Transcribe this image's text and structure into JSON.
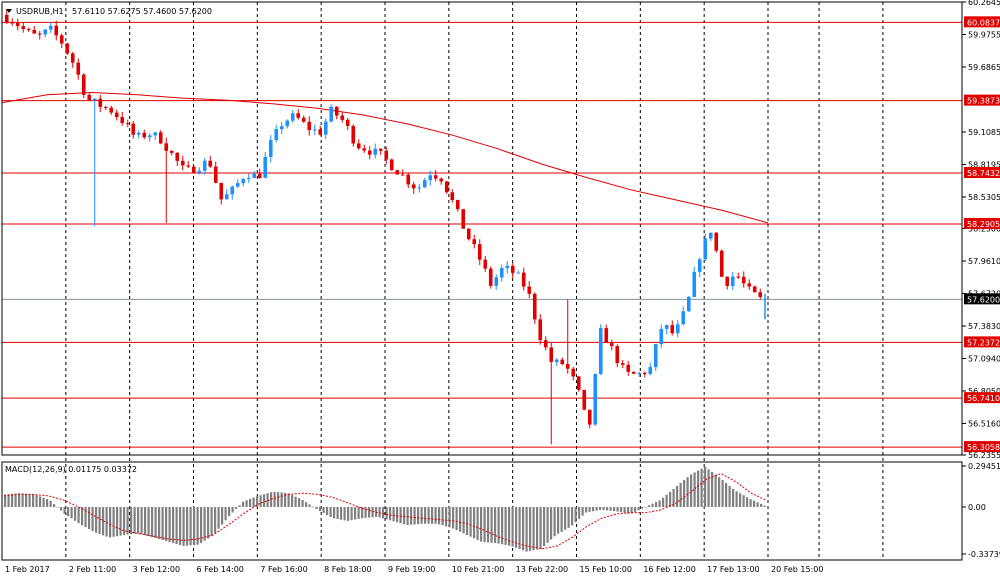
{
  "header": {
    "symbol_label": "USDRUB,H1",
    "ohlc_label": "57.6110 57.6275 57.4600 57.6200"
  },
  "macd": {
    "label": "MACD(12,26,9) 0.01175 0.03372",
    "ticks": [
      {
        "value": 0.29451,
        "label": "0.29451"
      },
      {
        "value": 0.0,
        "label": "0.00"
      },
      {
        "value": -0.33739,
        "label": "-0.33739"
      }
    ],
    "signal_values": [
      0.08,
      0.09,
      0.09,
      0.08,
      0.05,
      0.0,
      -0.06,
      -0.12,
      -0.17,
      -0.19,
      -0.21,
      -0.23,
      -0.24,
      -0.23,
      -0.2,
      -0.13,
      -0.05,
      0.02,
      0.06,
      0.09,
      0.1,
      0.09,
      0.07,
      0.03,
      -0.01,
      -0.04,
      -0.06,
      -0.07,
      -0.08,
      -0.09,
      -0.1,
      -0.12,
      -0.16,
      -0.21,
      -0.25,
      -0.28,
      -0.3,
      -0.28,
      -0.22,
      -0.14,
      -0.08,
      -0.05,
      -0.04,
      -0.04,
      -0.02,
      0.03,
      0.11,
      0.2,
      0.24,
      0.18,
      0.1,
      0.05
    ]
  },
  "chart_data": {
    "type": "candlestick",
    "symbol": "USDRUB",
    "timeframe": "H1",
    "price_ticks": [
      60.2645,
      59.9755,
      59.6865,
      59.1085,
      58.8195,
      58.5305,
      58.25,
      57.961,
      57.672,
      57.383,
      57.094,
      56.805,
      56.516,
      56.2355
    ],
    "ylim": [
      56.2355,
      60.2645
    ],
    "time_labels": [
      "1 Feb 2017",
      "2 Feb 11:00",
      "3 Feb 12:00",
      "6 Feb 14:00",
      "7 Feb 16:00",
      "8 Feb 18:00",
      "9 Feb 19:00",
      "10 Feb 21:00",
      "13 Feb 22:00",
      "15 Feb 10:00",
      "16 Feb 12:00",
      "17 Feb 13:00",
      "20 Feb 15:00"
    ],
    "horizontal_levels": [
      {
        "value": 60.0837,
        "label": "60.0837",
        "color": "#e00000"
      },
      {
        "value": 59.3873,
        "label": "59.3873",
        "color": "#e00000"
      },
      {
        "value": 58.7432,
        "label": "58.7432",
        "color": "#e00000"
      },
      {
        "value": 58.2905,
        "label": "58.2905",
        "color": "#e00000"
      },
      {
        "value": 57.2372,
        "label": "57.2372",
        "color": "#e00000"
      },
      {
        "value": 56.741,
        "label": "56.7410",
        "color": "#e00000"
      },
      {
        "value": 56.3058,
        "label": "56.3058",
        "color": "#e00000"
      }
    ],
    "current_price": {
      "value": 57.62,
      "label": "57.6200"
    },
    "close_path": [
      60.15,
      60.1,
      60.0,
      59.95,
      60.02,
      59.9,
      59.7,
      59.4,
      59.35,
      59.3,
      59.2,
      59.05,
      59.1,
      59.05,
      58.9,
      58.75,
      58.8,
      58.85,
      58.5,
      58.6,
      58.75,
      58.7,
      59.0,
      59.2,
      59.25,
      59.15,
      59.1,
      59.3,
      59.2,
      59.0,
      58.95,
      58.9,
      58.8,
      58.7,
      58.6,
      58.75,
      58.7,
      58.45,
      58.2,
      58.0,
      57.75,
      57.9,
      57.85,
      57.7,
      57.3,
      57.05,
      57.05,
      56.85,
      56.45,
      57.35,
      57.15,
      56.95,
      56.95,
      57.0,
      57.4,
      57.3,
      57.55,
      58.0,
      58.25,
      57.75,
      57.85,
      57.7,
      57.62
    ],
    "ma_path": [
      59.37,
      59.44,
      59.46,
      59.44,
      59.41,
      59.39,
      59.36,
      59.32,
      59.26,
      59.18,
      59.08,
      58.96,
      58.82,
      58.7,
      58.59,
      58.5,
      58.41,
      58.3
    ],
    "macd_histogram": [
      0.09,
      0.1,
      0.09,
      0.05,
      -0.05,
      -0.12,
      -0.18,
      -0.22,
      -0.2,
      -0.19,
      -0.22,
      -0.25,
      -0.28,
      -0.27,
      -0.2,
      -0.07,
      0.04,
      0.08,
      0.11,
      0.1,
      0.05,
      -0.02,
      -0.08,
      -0.1,
      -0.08,
      -0.07,
      -0.1,
      -0.13,
      -0.12,
      -0.12,
      -0.15,
      -0.2,
      -0.25,
      -0.26,
      -0.28,
      -0.32,
      -0.3,
      -0.2,
      -0.14,
      -0.04,
      -0.02,
      -0.03,
      -0.05,
      0.0,
      0.05,
      0.14,
      0.23,
      0.29,
      0.21,
      0.12,
      0.06,
      0.01
    ],
    "colors": {
      "bull": "#1e90ff",
      "bear": "#e00000",
      "level": "#e00000",
      "ma": "#e00000",
      "hist": "#808080",
      "signal": "#e00000"
    }
  }
}
